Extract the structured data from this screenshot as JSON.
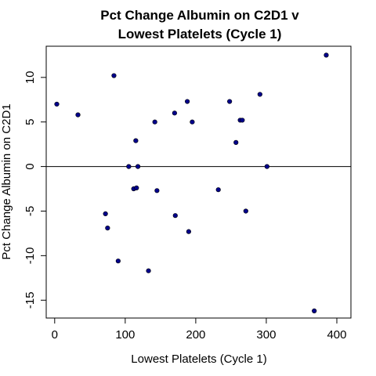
{
  "chart_data": {
    "type": "scatter",
    "title_lines": [
      "Pct Change Albumin on C2D1 v",
      "Lowest Platelets (Cycle 1)"
    ],
    "xlabel": "Lowest Platelets (Cycle 1)",
    "ylabel": "Pct Change Albumin on C2D1",
    "xlim": [
      -12,
      420
    ],
    "ylim": [
      -17,
      13.5
    ],
    "xticks": [
      0,
      100,
      200,
      300,
      400
    ],
    "yticks": [
      -15,
      -10,
      -5,
      0,
      5,
      10
    ],
    "reference_line_y": 0,
    "point_color": "#00008B",
    "grid": false,
    "legend": "none",
    "points": [
      {
        "x": 3,
        "y": 7.0
      },
      {
        "x": 33,
        "y": 5.8
      },
      {
        "x": 72,
        "y": -5.3
      },
      {
        "x": 75,
        "y": -6.9
      },
      {
        "x": 84,
        "y": 10.2
      },
      {
        "x": 90,
        "y": -10.6
      },
      {
        "x": 105,
        "y": 0.0
      },
      {
        "x": 112,
        "y": -2.5
      },
      {
        "x": 115,
        "y": 2.9
      },
      {
        "x": 116,
        "y": -2.4
      },
      {
        "x": 118,
        "y": 0.0
      },
      {
        "x": 133,
        "y": -11.7
      },
      {
        "x": 142,
        "y": 5.0
      },
      {
        "x": 145,
        "y": -2.7
      },
      {
        "x": 170,
        "y": 6.0
      },
      {
        "x": 171,
        "y": -5.5
      },
      {
        "x": 188,
        "y": 7.3
      },
      {
        "x": 190,
        "y": -7.3
      },
      {
        "x": 195,
        "y": 5.0
      },
      {
        "x": 232,
        "y": -2.6
      },
      {
        "x": 248,
        "y": 7.3
      },
      {
        "x": 257,
        "y": 2.7
      },
      {
        "x": 263,
        "y": 5.2
      },
      {
        "x": 266,
        "y": 5.2
      },
      {
        "x": 271,
        "y": -5.0
      },
      {
        "x": 291,
        "y": 8.1
      },
      {
        "x": 301,
        "y": 0.0
      },
      {
        "x": 368,
        "y": -16.2
      },
      {
        "x": 385,
        "y": 12.5
      }
    ]
  }
}
